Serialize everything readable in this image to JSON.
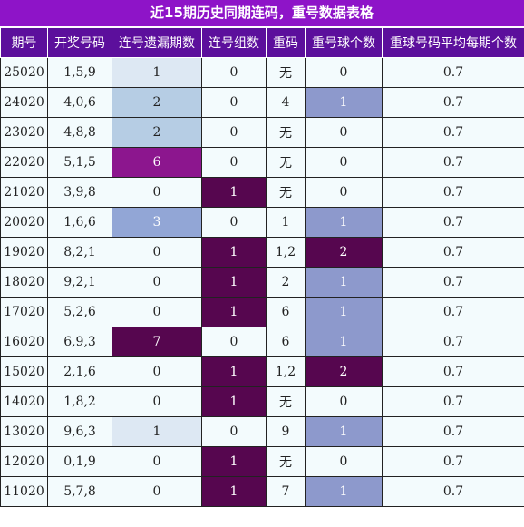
{
  "title": "近15期历史同期连码，重号数据表格",
  "headers": [
    "期号",
    "开奖号码",
    "连号遗漏期数",
    "连号组数",
    "重码",
    "重号球个数",
    "重球号码平均每期个数"
  ],
  "rows": [
    {
      "issue": "25020",
      "numbers": "1,5,9",
      "miss": "1",
      "groups": "0",
      "repeat": "无",
      "repeat_count": "0",
      "avg": "0.7"
    },
    {
      "issue": "24020",
      "numbers": "4,0,6",
      "miss": "2",
      "groups": "0",
      "repeat": "4",
      "repeat_count": "1",
      "avg": "0.7"
    },
    {
      "issue": "23020",
      "numbers": "4,8,8",
      "miss": "2",
      "groups": "0",
      "repeat": "无",
      "repeat_count": "0",
      "avg": "0.7"
    },
    {
      "issue": "22020",
      "numbers": "5,1,5",
      "miss": "6",
      "groups": "0",
      "repeat": "无",
      "repeat_count": "0",
      "avg": "0.7"
    },
    {
      "issue": "21020",
      "numbers": "3,9,8",
      "miss": "0",
      "groups": "1",
      "repeat": "无",
      "repeat_count": "0",
      "avg": "0.7"
    },
    {
      "issue": "20020",
      "numbers": "1,6,6",
      "miss": "3",
      "groups": "0",
      "repeat": "1",
      "repeat_count": "1",
      "avg": "0.7"
    },
    {
      "issue": "19020",
      "numbers": "8,2,1",
      "miss": "0",
      "groups": "1",
      "repeat": "1,2",
      "repeat_count": "2",
      "avg": "0.7"
    },
    {
      "issue": "18020",
      "numbers": "9,2,1",
      "miss": "0",
      "groups": "1",
      "repeat": "2",
      "repeat_count": "1",
      "avg": "0.7"
    },
    {
      "issue": "17020",
      "numbers": "5,2,6",
      "miss": "0",
      "groups": "1",
      "repeat": "6",
      "repeat_count": "1",
      "avg": "0.7"
    },
    {
      "issue": "16020",
      "numbers": "6,9,3",
      "miss": "7",
      "groups": "0",
      "repeat": "6",
      "repeat_count": "1",
      "avg": "0.7"
    },
    {
      "issue": "15020",
      "numbers": "2,1,6",
      "miss": "0",
      "groups": "1",
      "repeat": "1,2",
      "repeat_count": "2",
      "avg": "0.7"
    },
    {
      "issue": "14020",
      "numbers": "1,8,2",
      "miss": "0",
      "groups": "1",
      "repeat": "无",
      "repeat_count": "0",
      "avg": "0.7"
    },
    {
      "issue": "13020",
      "numbers": "9,6,3",
      "miss": "1",
      "groups": "0",
      "repeat": "9",
      "repeat_count": "1",
      "avg": "0.7"
    },
    {
      "issue": "12020",
      "numbers": "0,1,9",
      "miss": "0",
      "groups": "1",
      "repeat": "无",
      "repeat_count": "0",
      "avg": "0.7"
    },
    {
      "issue": "11020",
      "numbers": "5,7,8",
      "miss": "0",
      "groups": "1",
      "repeat": "7",
      "repeat_count": "1",
      "avg": "0.7"
    }
  ]
}
